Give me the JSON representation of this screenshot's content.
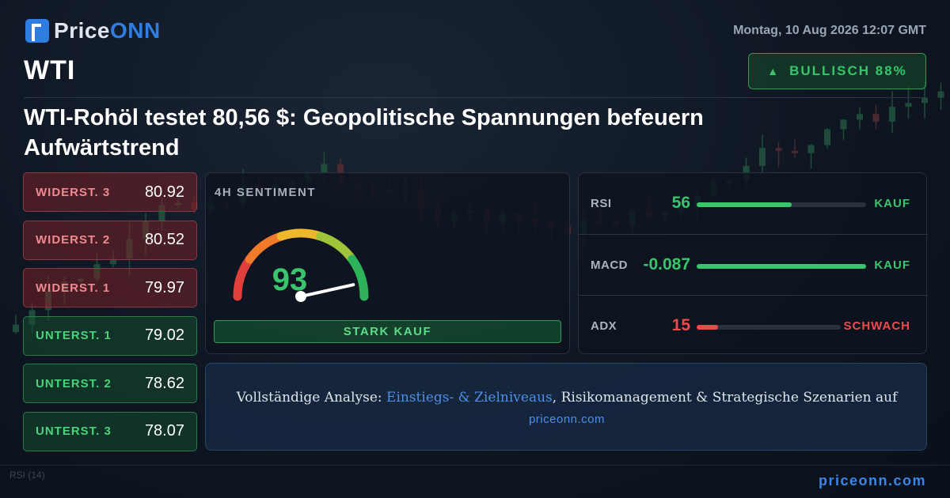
{
  "brand": {
    "name_a": "Price",
    "name_b": "ONN"
  },
  "date": "Montag, 10 Aug 2026 12:07 GMT",
  "symbol": "WTI",
  "badge": {
    "label": "BULLISCH 88%",
    "arrow_icon": "triangle-up-icon",
    "color": "#37c46a"
  },
  "headline": "WTI-Rohöl testet 80,56 $: Geopolitische Spannungen befeuern Aufwärtstrend",
  "levels": [
    {
      "name": "WIDERST. 3",
      "value": "80.92",
      "kind": "resistance"
    },
    {
      "name": "WIDERST. 2",
      "value": "80.52",
      "kind": "resistance"
    },
    {
      "name": "WIDERST. 1",
      "value": "79.97",
      "kind": "resistance"
    },
    {
      "name": "UNTERST. 1",
      "value": "79.02",
      "kind": "support"
    },
    {
      "name": "UNTERST. 2",
      "value": "78.62",
      "kind": "support"
    },
    {
      "name": "UNTERST. 3",
      "value": "78.07",
      "kind": "support"
    }
  ],
  "sentiment": {
    "title": "4H SENTIMENT",
    "score": "93",
    "score_value": 93,
    "label": "STARK KAUF"
  },
  "indicators": [
    {
      "name": "RSI",
      "value": "56",
      "signal": "KAUF",
      "fill": 0.56,
      "color": "#38c56c"
    },
    {
      "name": "MACD",
      "value": "-0.087",
      "signal": "KAUF",
      "fill": 1.0,
      "color": "#38c56c"
    },
    {
      "name": "ADX",
      "value": "15",
      "signal": "SCHWACH",
      "fill": 0.15,
      "color": "#ef4a4a"
    }
  ],
  "cta": {
    "prefix": "Vollständige Analyse: ",
    "highlight": "Einstiegs- & Zielniveaus",
    "suffix": ", Risikomanagement & Strategische Szenarien auf",
    "link": "priceonn.com"
  },
  "footer": {
    "rsi_label": "RSI",
    "rsi_period": "(14)",
    "url": "priceonn.com"
  }
}
